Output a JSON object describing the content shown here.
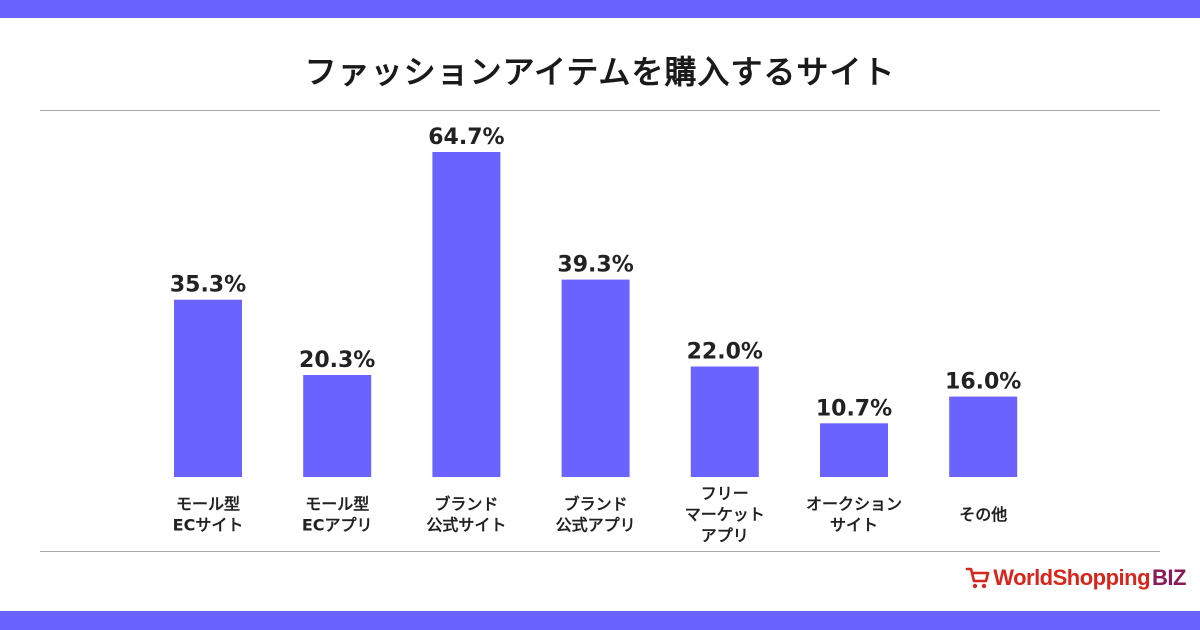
{
  "colors": {
    "accent": "#6b63ff",
    "bar": "#6b63ff",
    "rule": "#a9a9a9"
  },
  "logo": {
    "text_main": "WorldShopping",
    "text_suffix": "BIZ",
    "icon": "shopping-cart-icon"
  },
  "chart_data": {
    "type": "bar",
    "title": "ファッションアイテムを購入するサイト",
    "categories": [
      [
        "モール型",
        "ECサイト"
      ],
      [
        "モール型",
        "ECアプリ"
      ],
      [
        "ブランド",
        "公式サイト"
      ],
      [
        "ブランド",
        "公式アプリ"
      ],
      [
        "フリー",
        "マーケット",
        "アプリ"
      ],
      [
        "オークション",
        "サイト"
      ],
      [
        "その他"
      ]
    ],
    "values": [
      35.3,
      20.3,
      64.7,
      39.3,
      22.0,
      10.7,
      16.0
    ],
    "value_labels": [
      "35.3%",
      "20.3%",
      "64.7%",
      "39.3%",
      "22.0%",
      "10.7%",
      "16.0%"
    ],
    "unit": "%",
    "ylim": [
      0,
      64.7
    ],
    "grid": false,
    "legend": "none"
  }
}
